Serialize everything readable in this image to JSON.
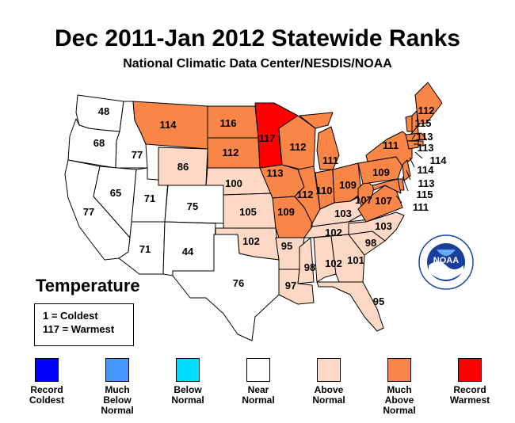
{
  "title": "Dec 2011-Jan 2012 Statewide Ranks",
  "subtitle": "National Climatic Data Center/NESDIS/NOAA",
  "variable_label": "Temperature",
  "key": {
    "line1": "1 = Coldest",
    "line2": "117 = Warmest"
  },
  "logo_text": "NOAA",
  "logo_ring_text": "NATIONAL OCEANIC AND ATMOSPHERIC ADMINISTRATION · U.S. DEPARTMENT OF COMMERCE",
  "colors": {
    "record_coldest": "#0000ff",
    "much_below": "#4499ff",
    "below": "#00ddff",
    "near": "#ffffff",
    "above": "#fdd8c4",
    "much_above": "#f98646",
    "record_warmest": "#ff0000"
  },
  "legend": [
    {
      "key": "record_coldest",
      "label": "Record\nColdest"
    },
    {
      "key": "much_below",
      "label": "Much\nBelow\nNormal"
    },
    {
      "key": "below",
      "label": "Below\nNormal"
    },
    {
      "key": "near",
      "label": "Near\nNormal"
    },
    {
      "key": "above",
      "label": "Above\nNormal"
    },
    {
      "key": "much_above",
      "label": "Much\nAbove\nNormal"
    },
    {
      "key": "record_warmest",
      "label": "Record\nWarmest"
    }
  ],
  "states": [
    {
      "code": "WA",
      "rank": "48",
      "category": "near"
    },
    {
      "code": "OR",
      "rank": "68",
      "category": "near"
    },
    {
      "code": "CA",
      "rank": "77",
      "category": "near"
    },
    {
      "code": "ID",
      "rank": "77",
      "category": "near"
    },
    {
      "code": "NV",
      "rank": "65",
      "category": "near"
    },
    {
      "code": "UT",
      "rank": "71",
      "category": "near"
    },
    {
      "code": "AZ",
      "rank": "71",
      "category": "near"
    },
    {
      "code": "MT",
      "rank": "114",
      "category": "much_above"
    },
    {
      "code": "WY",
      "rank": "86",
      "category": "above"
    },
    {
      "code": "CO",
      "rank": "75",
      "category": "near"
    },
    {
      "code": "NM",
      "rank": "44",
      "category": "near"
    },
    {
      "code": "ND",
      "rank": "116",
      "category": "much_above"
    },
    {
      "code": "SD",
      "rank": "112",
      "category": "much_above"
    },
    {
      "code": "NE",
      "rank": "100",
      "category": "above"
    },
    {
      "code": "KS",
      "rank": "105",
      "category": "above"
    },
    {
      "code": "OK",
      "rank": "102",
      "category": "above"
    },
    {
      "code": "TX",
      "rank": "76",
      "category": "near"
    },
    {
      "code": "MN",
      "rank": "117",
      "category": "record_warmest"
    },
    {
      "code": "IA",
      "rank": "113",
      "category": "much_above"
    },
    {
      "code": "MO",
      "rank": "109",
      "category": "much_above"
    },
    {
      "code": "AR",
      "rank": "95",
      "category": "above"
    },
    {
      "code": "LA",
      "rank": "97",
      "category": "above"
    },
    {
      "code": "WI",
      "rank": "112",
      "category": "much_above"
    },
    {
      "code": "IL",
      "rank": "112",
      "category": "much_above"
    },
    {
      "code": "MI",
      "rank": "111",
      "category": "much_above"
    },
    {
      "code": "IN",
      "rank": "110",
      "category": "much_above"
    },
    {
      "code": "OH",
      "rank": "109",
      "category": "much_above"
    },
    {
      "code": "KY",
      "rank": "103",
      "category": "above"
    },
    {
      "code": "TN",
      "rank": "102",
      "category": "above"
    },
    {
      "code": "MS",
      "rank": "98",
      "category": "above"
    },
    {
      "code": "AL",
      "rank": "102",
      "category": "above"
    },
    {
      "code": "GA",
      "rank": "101",
      "category": "above"
    },
    {
      "code": "FL",
      "rank": "95",
      "category": "above"
    },
    {
      "code": "SC",
      "rank": "98",
      "category": "above"
    },
    {
      "code": "NC",
      "rank": "103",
      "category": "above"
    },
    {
      "code": "VA",
      "rank": "107",
      "category": "much_above"
    },
    {
      "code": "WV",
      "rank": "107",
      "category": "much_above"
    },
    {
      "code": "PA",
      "rank": "109",
      "category": "much_above"
    },
    {
      "code": "NY",
      "rank": "111",
      "category": "much_above"
    },
    {
      "code": "ME",
      "rank": "112",
      "category": "much_above"
    },
    {
      "code": "VT",
      "rank": "115",
      "category": "much_above"
    },
    {
      "code": "NH",
      "rank": "113",
      "category": "much_above"
    },
    {
      "code": "MA",
      "rank": "113",
      "category": "much_above"
    },
    {
      "code": "RI",
      "rank": "114",
      "category": "much_above"
    },
    {
      "code": "CT",
      "rank": "114",
      "category": "much_above"
    },
    {
      "code": "NJ",
      "rank": "113",
      "category": "much_above"
    },
    {
      "code": "DE",
      "rank": "115",
      "category": "much_above"
    },
    {
      "code": "MD",
      "rank": "111",
      "category": "much_above"
    }
  ]
}
